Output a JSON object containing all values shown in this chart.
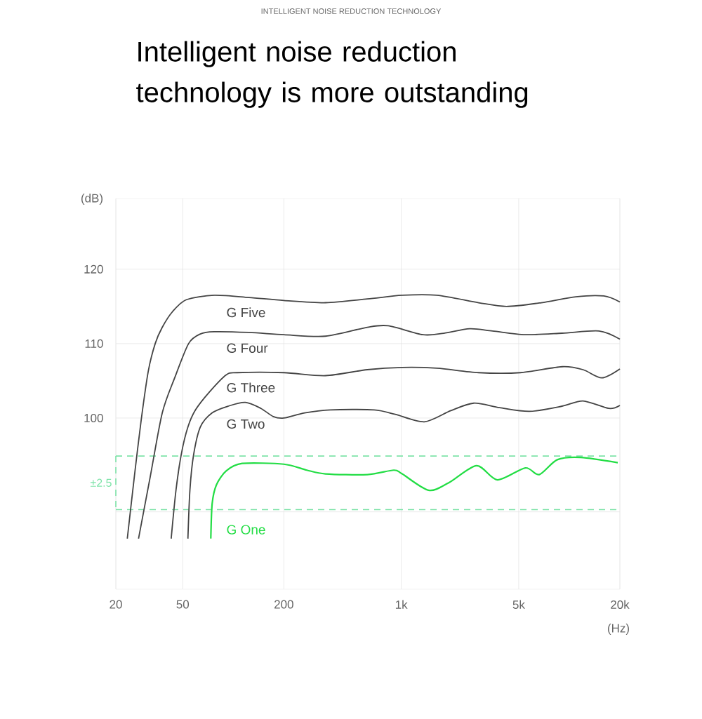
{
  "chart_data": {
    "type": "line",
    "subtitle": "INTELLIGENT NOISE REDUCTION TECHNOLOGY",
    "title": "Intelligent noise reduction technology is more outstanding",
    "xlabel": "(Hz)",
    "ylabel": "(dB)",
    "log": "x",
    "grid": true,
    "xlim": [
      20,
      20000
    ],
    "xticks": [
      20,
      50,
      200,
      {
        "value": 1000,
        "label": "1k"
      },
      {
        "value": 5000,
        "label": "5k"
      },
      {
        "value": 20000,
        "label": "20k"
      }
    ],
    "ylim": [
      77,
      129.5
    ],
    "yticks": [
      {
        "value": 87.4,
        "label": null
      },
      100,
      110,
      120
    ],
    "ref_lines": [
      {
        "axis": "y",
        "value": 94.9,
        "color": "#7de3a8",
        "line_style": "dashed"
      },
      {
        "axis": "y",
        "value": 87.7,
        "color": "#7de3a8",
        "line_style": "dashed"
      }
    ],
    "annotations": [
      "±2.5"
    ],
    "series": [
      {
        "name": "G Five",
        "color": "#444444",
        "x": [
          23.4,
          25.8,
          28.3,
          31.2,
          34.3,
          37.8,
          43.5,
          52.6,
          77,
          124,
          200,
          354,
          628,
          1012,
          1630,
          2885,
          4227,
          6810,
          10960,
          16060,
          20000
        ],
        "values": [
          83.8,
          92.2,
          99.7,
          106.3,
          110.0,
          112.2,
          114.3,
          115.9,
          116.5,
          116.2,
          115.8,
          115.5,
          116.0,
          116.5,
          116.5,
          115.5,
          115.0,
          115.5,
          116.3,
          116.4,
          115.6
        ]
      },
      {
        "name": "G Four",
        "color": "#444444",
        "x": [
          27.3,
          32.1,
          37.8,
          44.8,
          54.2,
          63.7,
          77,
          124,
          200,
          354,
          628,
          836,
          1346,
          1792,
          2552,
          3492,
          5470,
          9060,
          15020,
          20000
        ],
        "values": [
          83.8,
          92.2,
          100.7,
          105.4,
          110.0,
          111.3,
          111.6,
          111.5,
          111.2,
          111.0,
          112.2,
          112.4,
          111.2,
          111.4,
          112.0,
          111.7,
          111.2,
          111.4,
          111.7,
          110.6
        ]
      },
      {
        "name": "G Three",
        "color": "#444444",
        "x": [
          42.7,
          45.6,
          49.2,
          53.7,
          59.6,
          72.1,
          90.7,
          105.6,
          200,
          354,
          628,
          1012,
          1630,
          2885,
          5117,
          9060,
          12070,
          15600,
          20000
        ],
        "values": [
          83.8,
          90.3,
          95.3,
          98.8,
          101.1,
          103.5,
          105.8,
          106.1,
          106.1,
          105.7,
          106.5,
          106.8,
          106.7,
          106.1,
          106.1,
          106.9,
          106.5,
          105.4,
          106.6
        ]
      },
      {
        "name": "G Two",
        "color": "#444444",
        "x": [
          53.7,
          55.2,
          58,
          63.7,
          74.9,
          93.3,
          118,
          146,
          173,
          200,
          266,
          379,
          690,
          920,
          1372,
          1972,
          2700,
          3845,
          5790,
          9060,
          12070,
          17180,
          20000
        ],
        "values": [
          83.8,
          90.3,
          95.0,
          98.8,
          100.7,
          101.6,
          102.1,
          101.3,
          100.2,
          100.0,
          100.7,
          101.1,
          101.1,
          100.5,
          99.5,
          101.0,
          102.0,
          101.4,
          100.9,
          101.6,
          102.3,
          101.3,
          101.7
        ]
      },
      {
        "name": "G One",
        "color": "#22dd44",
        "x": [
          73.5,
          74.9,
          79.3,
          90.7,
          113,
          200,
          274,
          354,
          628,
          902,
          1012,
          1452,
          1916,
          2806,
          3735,
          5470,
          6620,
          8480,
          11720,
          19440
        ],
        "values": [
          83.8,
          88.5,
          91.0,
          92.9,
          93.9,
          93.8,
          93.0,
          92.5,
          92.4,
          93.0,
          92.5,
          90.3,
          91.3,
          93.6,
          91.7,
          93.3,
          92.4,
          94.4,
          94.7,
          94.0
        ]
      }
    ]
  }
}
